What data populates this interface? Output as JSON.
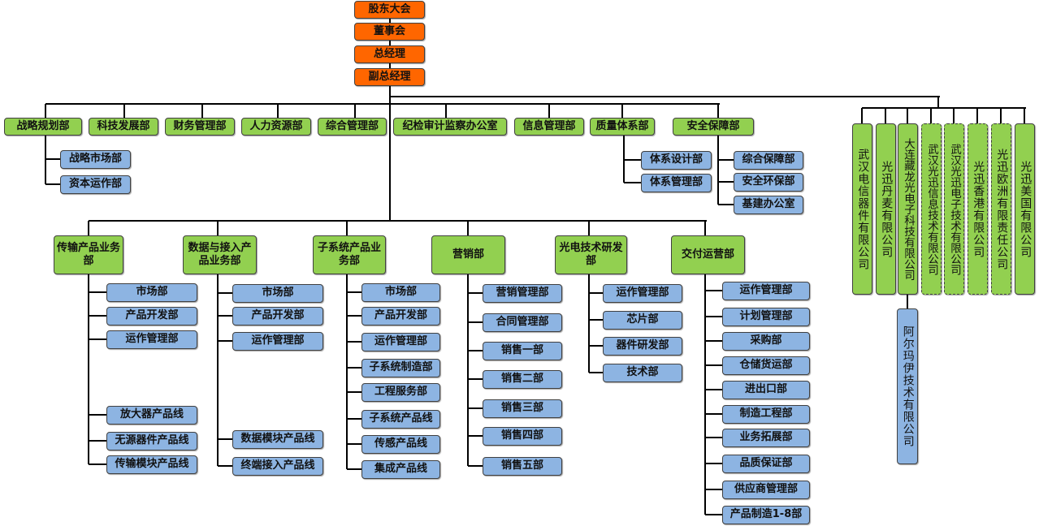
{
  "colors": {
    "executive": "#ff6600",
    "department": "#92d050",
    "sub_unit": "#8db4e2"
  },
  "executives": [
    "股东大会",
    "董事会",
    "总经理",
    "副总经理"
  ],
  "departments": [
    {
      "label": "战略规划部",
      "children": [
        "战略市场部",
        "资本运作部"
      ]
    },
    {
      "label": "科技发展部",
      "children": []
    },
    {
      "label": "财务管理部",
      "children": []
    },
    {
      "label": "人力资源部",
      "children": []
    },
    {
      "label": "综合管理部",
      "children": []
    },
    {
      "label": "纪检审计监察办公室",
      "children": []
    },
    {
      "label": "信息管理部",
      "children": []
    },
    {
      "label": "质量体系部",
      "children": [
        "体系设计部",
        "体系管理部"
      ]
    },
    {
      "label": "安全保障部",
      "children": [
        "综合保障部",
        "安全环保部",
        "基建办公室"
      ]
    }
  ],
  "divisions": [
    {
      "label": "传输产品业务部",
      "children": [
        "市场部",
        "产品开发部",
        "运作管理部",
        "放大器产品线",
        "无源器件产品线",
        "传输模块产品线"
      ]
    },
    {
      "label": "数据与接入产品业务部",
      "children": [
        "市场部",
        "产品开发部",
        "运作管理部",
        "数据模块产品线",
        "终端接入产品线"
      ]
    },
    {
      "label": "子系统产品业务部",
      "children": [
        "市场部",
        "产品开发部",
        "运作管理部",
        "子系统制造部",
        "工程服务部",
        "子系统产品线",
        "传感产品线",
        "集成产品线"
      ]
    },
    {
      "label": "营销部",
      "children": [
        "营销管理部",
        "合同管理部",
        "销售一部",
        "销售二部",
        "销售三部",
        "销售四部",
        "销售五部"
      ]
    },
    {
      "label": "光电技术研发部",
      "children": [
        "运作管理部",
        "芯片部",
        "器件研发部",
        "技术部"
      ]
    },
    {
      "label": "交付运营部",
      "children": [
        "运作管理部",
        "计划管理部",
        "采购部",
        "仓储货运部",
        "进出口部",
        "制造工程部",
        "业务拓展部",
        "品质保证部",
        "供应商管理部",
        "产品制造1-8部"
      ]
    }
  ],
  "subsidiaries": [
    {
      "label": "武汉电信器件有限公司",
      "border": "solid",
      "children": []
    },
    {
      "label": "光迅丹麦有限公司",
      "border": "solid",
      "children": []
    },
    {
      "label": "大连藏龙光电子科技有限公司",
      "border": "solid",
      "children": [
        "阿尔玛伊技术有限公司"
      ]
    },
    {
      "label": "武汉光迅信息技术有限公司",
      "border": "dashed",
      "children": []
    },
    {
      "label": "武汉光迅电子技术有限公司",
      "border": "dashed",
      "children": []
    },
    {
      "label": "光迅香港有限公司",
      "border": "dashed",
      "children": []
    },
    {
      "label": "光迅欧洲有限责任公司",
      "border": "dashed",
      "children": []
    },
    {
      "label": "光迅美国有限公司",
      "border": "solid",
      "children": []
    }
  ]
}
